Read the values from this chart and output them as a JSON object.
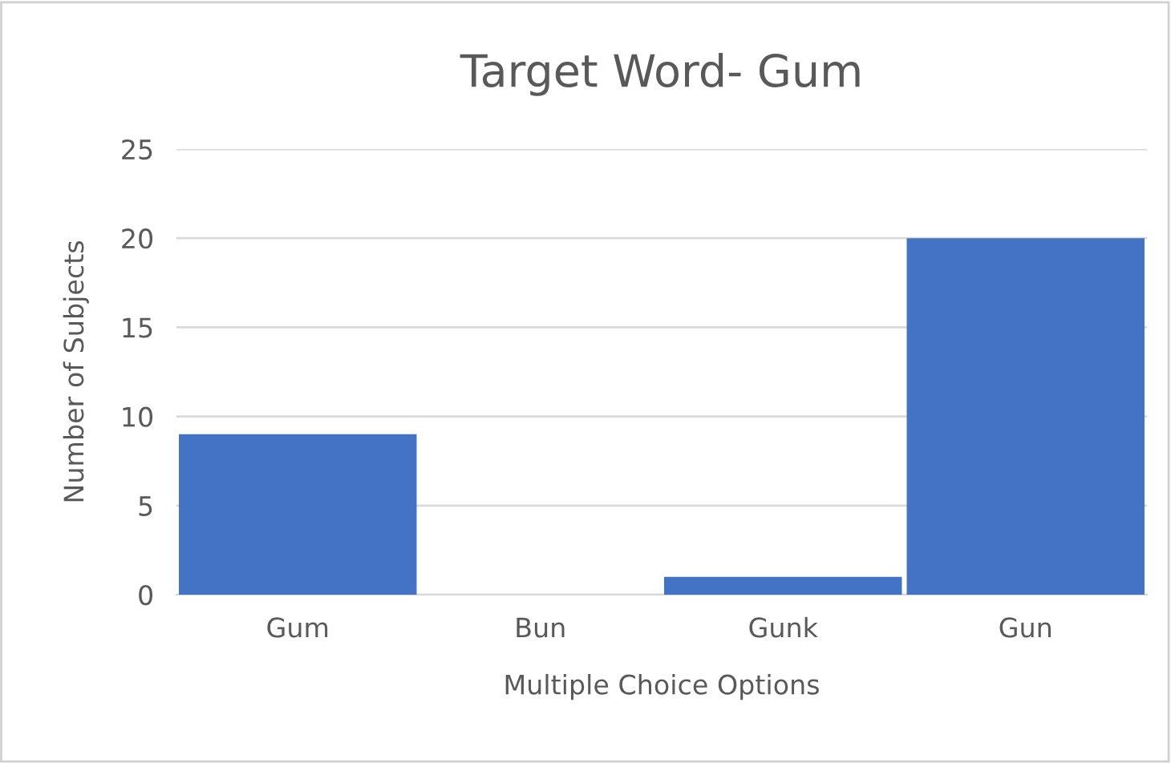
{
  "chart_data": {
    "type": "bar",
    "title": "Target Word- Gum",
    "xlabel": "Multiple Choice Options",
    "ylabel": "Number of Subjects",
    "categories": [
      "Gum",
      "Bun",
      "Gunk",
      "Gun"
    ],
    "values": [
      9,
      0,
      1,
      20
    ],
    "color": "#4472c4",
    "ylim": [
      0,
      25
    ],
    "yticks": [
      0,
      5,
      10,
      15,
      20,
      25
    ],
    "grid": "y"
  }
}
